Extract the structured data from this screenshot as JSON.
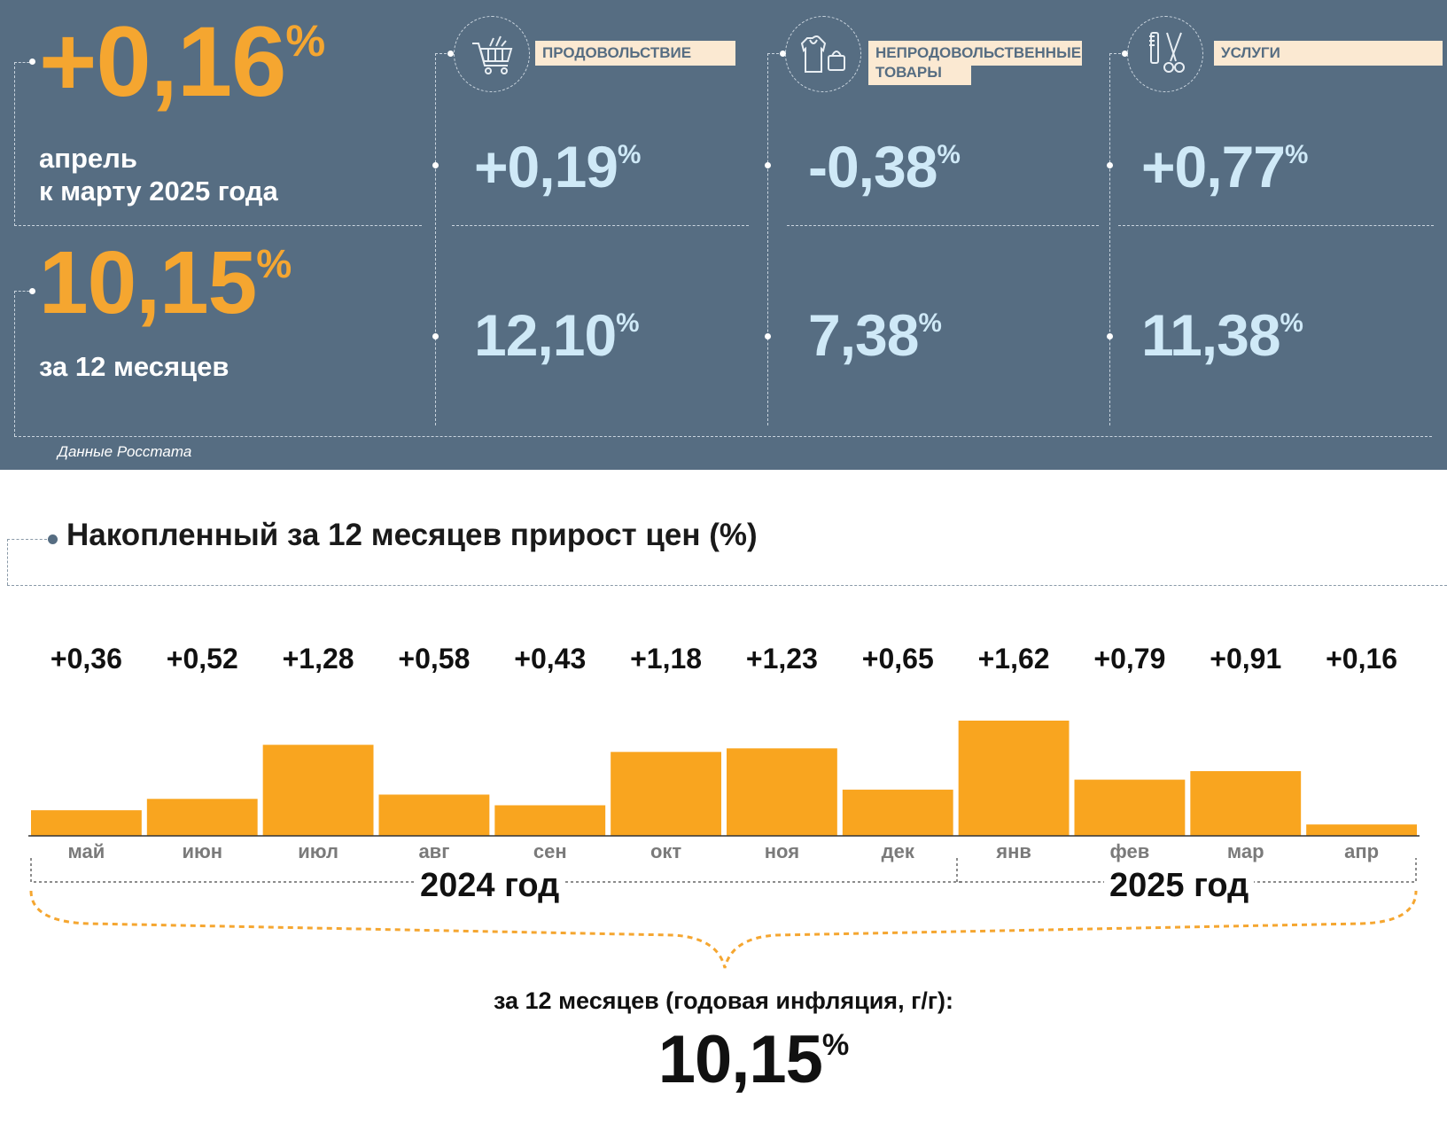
{
  "summary": {
    "monthly_value": "+0,16",
    "monthly_label_line1": "апрель",
    "monthly_label_line2": "к марту 2025 года",
    "annual_value": "10,15",
    "annual_label": "за 12 месяцев",
    "percent_sign": "%",
    "source": "Данные Росстата"
  },
  "categories": [
    {
      "name": "ПРОДОВОЛЬСТВИЕ",
      "name_line2": "",
      "icon": "shopping-cart-icon",
      "monthly": "+0,19",
      "annual": "12,10"
    },
    {
      "name": "НЕПРОДОВОЛЬСТВЕННЫЕ",
      "name_line2": "ТОВАРЫ",
      "icon": "clothing-bag-icon",
      "monthly": "-0,38",
      "annual": "7,38"
    },
    {
      "name": "УСЛУГИ",
      "name_line2": "",
      "icon": "scissors-comb-icon",
      "monthly": "+0,77",
      "annual": "11,38"
    }
  ],
  "colors": {
    "panel": "#566d82",
    "orange": "#f5a630",
    "light_blue": "#cfe9f7",
    "tag": "#fbe9d2",
    "bar": "#f9a51f"
  },
  "chart_title": "Накопленный за 12 месяцев прирост цен (%)",
  "chart_data": {
    "type": "bar",
    "categories": [
      "май",
      "июн",
      "июл",
      "авг",
      "сен",
      "окт",
      "ноя",
      "дек",
      "янв",
      "фев",
      "мар",
      "апр"
    ],
    "values": [
      0.36,
      0.52,
      1.28,
      0.58,
      0.43,
      1.18,
      1.23,
      0.65,
      1.62,
      0.79,
      0.91,
      0.16
    ],
    "value_labels": [
      "+0,36",
      "+0,52",
      "+1,28",
      "+0,58",
      "+0,43",
      "+1,18",
      "+1,23",
      "+0,65",
      "+1,62",
      "+0,79",
      "+0,91",
      "+0,16"
    ],
    "year_groups": [
      {
        "label": "2024 год",
        "from": "май",
        "to": "дек"
      },
      {
        "label": "2025 год",
        "from": "янв",
        "to": "апр"
      }
    ],
    "grid": false,
    "legend": "none"
  },
  "total": {
    "label": "за 12 месяцев (годовая инфляция, г/г):",
    "value": "10,15",
    "percent_sign": "%"
  }
}
